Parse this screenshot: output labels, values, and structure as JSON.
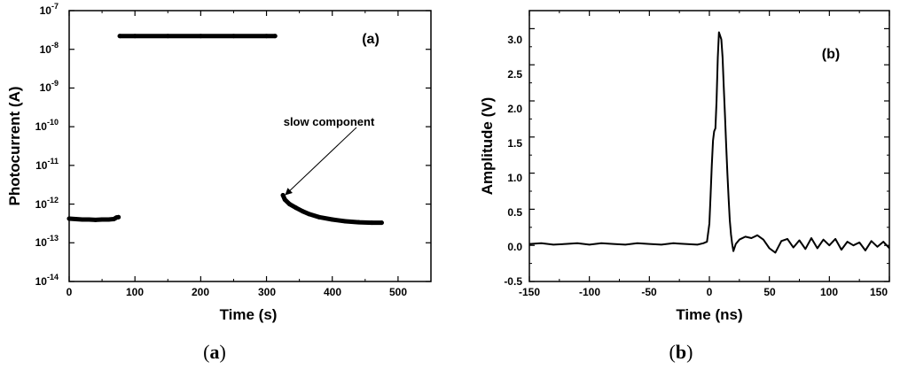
{
  "colors": {
    "line": "#000000",
    "background": "#ffffff"
  },
  "chart_data": [
    {
      "type": "scatter",
      "panel_label": "(a)",
      "caption": {
        "open": "(",
        "letter": "a",
        "close": ")"
      },
      "xlabel": "Time (s)",
      "ylabel": "Photocurrent (A)",
      "xlim": [
        0,
        550
      ],
      "ylim_exponents": [
        -14,
        -7
      ],
      "yscale": "log",
      "x_ticks": [
        0,
        100,
        200,
        300,
        400,
        500
      ],
      "x_tick_labels": [
        "0",
        "100",
        "200",
        "300",
        "400",
        "500"
      ],
      "y_ticks_exponent": [
        -14,
        -13,
        -12,
        -11,
        -10,
        -9,
        -8,
        -7
      ],
      "y_tick_base": "10",
      "y_tick_exponents_labels": [
        "-14",
        "-13",
        "-12",
        "-11",
        "-10",
        "-9",
        "-8",
        "-7"
      ],
      "grid": false,
      "series": [
        {
          "segments": [
            {
              "x": [
                0,
                10,
                20,
                30,
                40,
                50,
                60,
                68,
                70,
                72,
                75
              ],
              "y": [
                4.2e-13,
                4.1e-13,
                4e-13,
                4e-13,
                3.9e-13,
                4e-13,
                4e-13,
                4.1e-13,
                4.3e-13,
                4.5e-13,
                4.6e-13
              ]
            },
            {
              "x": [
                77,
                100,
                150,
                200,
                250,
                300,
                313
              ],
              "y": [
                2.2e-08,
                2.2e-08,
                2.2e-08,
                2.2e-08,
                2.2e-08,
                2.2e-08,
                2.2e-08
              ]
            },
            {
              "x": [
                325,
                328,
                335,
                345,
                355,
                365,
                380,
                400,
                420,
                440,
                460,
                475
              ],
              "y": [
                1.7e-12,
                1.3e-12,
                1e-12,
                8e-13,
                6.5e-13,
                5.5e-13,
                4.6e-13,
                4e-13,
                3.6e-13,
                3.4e-13,
                3.3e-13,
                3.3e-13
              ]
            }
          ]
        }
      ],
      "annotations": [
        {
          "text": "slow component",
          "arrow_to": [
            325,
            1.7e-12
          ]
        }
      ]
    },
    {
      "type": "line",
      "panel_label": "(b)",
      "caption": {
        "open": "(",
        "letter": "b",
        "close": ")"
      },
      "xlabel": "Time (ns)",
      "ylabel": "Amplitude (V)",
      "xlim": [
        -150,
        150
      ],
      "ylim": [
        -0.5,
        3.25
      ],
      "x_ticks": [
        -150,
        -100,
        -50,
        0,
        50,
        100,
        150
      ],
      "x_tick_labels": [
        "-150",
        "-100",
        "-50",
        "0",
        "50",
        "100",
        "150"
      ],
      "y_ticks": [
        -0.5,
        0.0,
        0.5,
        1.0,
        1.5,
        2.0,
        2.5,
        3.0
      ],
      "y_tick_labels": [
        "-0.5",
        "0.0",
        "0.5",
        "1.0",
        "1.5",
        "2.0",
        "2.5",
        "3.0"
      ],
      "grid": false,
      "series": [
        {
          "x": [
            -150,
            -140,
            -130,
            -120,
            -110,
            -100,
            -90,
            -80,
            -70,
            -60,
            -50,
            -40,
            -30,
            -20,
            -10,
            -5,
            -2,
            0,
            1,
            2,
            3,
            4,
            5,
            6,
            7,
            8,
            9,
            10,
            11,
            12,
            13,
            14,
            15,
            16,
            17,
            18,
            19,
            20,
            22,
            25,
            30,
            35,
            40,
            45,
            50,
            55,
            60,
            65,
            70,
            75,
            80,
            85,
            90,
            95,
            100,
            105,
            110,
            115,
            120,
            125,
            130,
            135,
            140,
            145,
            150
          ],
          "y": [
            0.02,
            0.03,
            0.01,
            0.02,
            0.03,
            0.01,
            0.03,
            0.02,
            0.01,
            0.03,
            0.02,
            0.01,
            0.03,
            0.02,
            0.01,
            0.03,
            0.05,
            0.3,
            0.7,
            1.1,
            1.45,
            1.58,
            1.62,
            2.0,
            2.6,
            2.95,
            2.9,
            2.85,
            2.6,
            2.2,
            1.8,
            1.4,
            1.0,
            0.65,
            0.35,
            0.15,
            0.02,
            -0.08,
            0.02,
            0.08,
            0.12,
            0.1,
            0.14,
            0.08,
            -0.04,
            -0.1,
            0.06,
            0.09,
            -0.03,
            0.07,
            -0.05,
            0.1,
            -0.04,
            0.08,
            0.0,
            0.09,
            -0.06,
            0.05,
            0.0,
            0.04,
            -0.07,
            0.06,
            -0.02,
            0.05,
            -0.04
          ]
        }
      ]
    }
  ]
}
